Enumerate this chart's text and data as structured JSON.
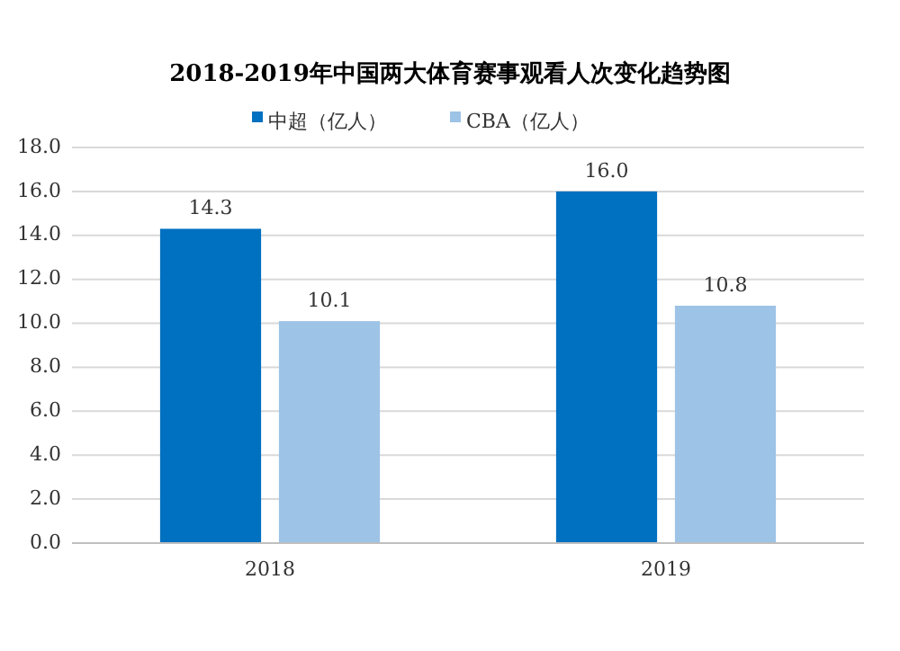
{
  "chart_data": {
    "type": "bar",
    "title": "2018-2019年中国两大体育赛事观看人次变化趋势图",
    "categories": [
      "2018",
      "2019"
    ],
    "series": [
      {
        "name": "中超（亿人）",
        "color": "#0070c0",
        "values": [
          14.3,
          16.0
        ],
        "value_labels": [
          "14.3",
          "16.0"
        ]
      },
      {
        "name": "CBA（亿人）",
        "color": "#9dc3e6",
        "values": [
          10.1,
          10.8
        ],
        "value_labels": [
          "10.1",
          "10.8"
        ]
      }
    ],
    "ylim": [
      0,
      18
    ],
    "yticks": [
      {
        "value": 0,
        "label": "0.0"
      },
      {
        "value": 2,
        "label": "2.0"
      },
      {
        "value": 4,
        "label": "4.0"
      },
      {
        "value": 6,
        "label": "6.0"
      },
      {
        "value": 8,
        "label": "8.0"
      },
      {
        "value": 10,
        "label": "10.0"
      },
      {
        "value": 12,
        "label": "12.0"
      },
      {
        "value": 14,
        "label": "14.0"
      },
      {
        "value": 16,
        "label": "16.0"
      },
      {
        "value": 18,
        "label": "18.0"
      }
    ],
    "grid": "y",
    "legend": "top"
  }
}
